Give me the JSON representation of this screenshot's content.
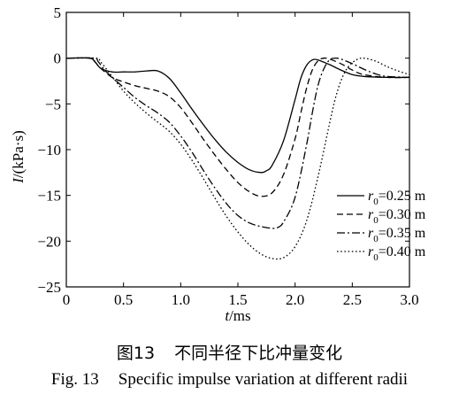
{
  "chart_data": {
    "type": "line",
    "xlabel_var": "t",
    "xlabel_unit": "/ms",
    "ylabel_var": "I",
    "ylabel_unit": "/(kPa·s)",
    "xlim": [
      0,
      3.0
    ],
    "ylim": [
      -25,
      5
    ],
    "x_ticks": [
      "0",
      "0.5",
      "1.0",
      "1.5",
      "2.0",
      "2.5",
      "3.0"
    ],
    "y_ticks": [
      "5",
      "0",
      "−5",
      "−10",
      "−15",
      "−20",
      "−25"
    ],
    "grid": false,
    "legend_position": "right",
    "series": [
      {
        "name": "r0=0.25 m",
        "label_var": "r",
        "label_sub": "0",
        "label_value": "=0.25 m",
        "dash": "solid",
        "points": [
          [
            0,
            0
          ],
          [
            0.2,
            0
          ],
          [
            0.25,
            -0.4
          ],
          [
            0.3,
            -1.1
          ],
          [
            0.4,
            -1.5
          ],
          [
            0.5,
            -1.5
          ],
          [
            0.6,
            -1.5
          ],
          [
            0.7,
            -1.4
          ],
          [
            0.8,
            -1.4
          ],
          [
            0.9,
            -2.2
          ],
          [
            1.0,
            -3.8
          ],
          [
            1.1,
            -5.6
          ],
          [
            1.2,
            -7.3
          ],
          [
            1.3,
            -8.9
          ],
          [
            1.4,
            -10.3
          ],
          [
            1.5,
            -11.4
          ],
          [
            1.6,
            -12.2
          ],
          [
            1.7,
            -12.5
          ],
          [
            1.75,
            -12.3
          ],
          [
            1.8,
            -11.7
          ],
          [
            1.9,
            -9.0
          ],
          [
            2.0,
            -4.5
          ],
          [
            2.05,
            -2.2
          ],
          [
            2.1,
            -0.8
          ],
          [
            2.15,
            -0.2
          ],
          [
            2.2,
            -0.2
          ],
          [
            2.3,
            -0.7
          ],
          [
            2.4,
            -1.3
          ],
          [
            2.5,
            -1.8
          ],
          [
            2.6,
            -2.0
          ],
          [
            2.8,
            -2.1
          ],
          [
            3.0,
            -2.1
          ]
        ]
      },
      {
        "name": "r0=0.30 m",
        "label_var": "r",
        "label_sub": "0",
        "label_value": "=0.30 m",
        "dash": "dashed",
        "points": [
          [
            0,
            0
          ],
          [
            0.22,
            0
          ],
          [
            0.25,
            -0.4
          ],
          [
            0.3,
            -1.1
          ],
          [
            0.4,
            -2.1
          ],
          [
            0.5,
            -2.6
          ],
          [
            0.6,
            -3.0
          ],
          [
            0.7,
            -3.3
          ],
          [
            0.8,
            -3.6
          ],
          [
            0.9,
            -4.2
          ],
          [
            1.0,
            -5.4
          ],
          [
            1.1,
            -7.1
          ],
          [
            1.2,
            -8.9
          ],
          [
            1.3,
            -10.6
          ],
          [
            1.4,
            -12.2
          ],
          [
            1.5,
            -13.6
          ],
          [
            1.6,
            -14.6
          ],
          [
            1.7,
            -15.1
          ],
          [
            1.8,
            -14.7
          ],
          [
            1.9,
            -12.7
          ],
          [
            2.0,
            -8.8
          ],
          [
            2.05,
            -6.0
          ],
          [
            2.1,
            -3.3
          ],
          [
            2.15,
            -1.3
          ],
          [
            2.2,
            -0.3
          ],
          [
            2.25,
            0
          ],
          [
            2.3,
            -0.1
          ],
          [
            2.4,
            -0.6
          ],
          [
            2.5,
            -1.3
          ],
          [
            2.6,
            -1.8
          ],
          [
            2.8,
            -2.1
          ],
          [
            3.0,
            -2.1
          ]
        ]
      },
      {
        "name": "r0=0.35 m",
        "label_var": "r",
        "label_sub": "0",
        "label_value": "=0.35 m",
        "dash": "dashdot",
        "points": [
          [
            0,
            0
          ],
          [
            0.24,
            0
          ],
          [
            0.28,
            -0.4
          ],
          [
            0.35,
            -1.5
          ],
          [
            0.5,
            -3.2
          ],
          [
            0.6,
            -4.3
          ],
          [
            0.7,
            -5.2
          ],
          [
            0.8,
            -6.0
          ],
          [
            0.9,
            -7.0
          ],
          [
            1.0,
            -8.5
          ],
          [
            1.1,
            -10.3
          ],
          [
            1.2,
            -12.3
          ],
          [
            1.3,
            -14.2
          ],
          [
            1.4,
            -15.9
          ],
          [
            1.5,
            -17.2
          ],
          [
            1.6,
            -18.0
          ],
          [
            1.7,
            -18.4
          ],
          [
            1.8,
            -18.6
          ],
          [
            1.85,
            -18.5
          ],
          [
            1.9,
            -17.9
          ],
          [
            2.0,
            -15.2
          ],
          [
            2.1,
            -9.5
          ],
          [
            2.15,
            -6.0
          ],
          [
            2.2,
            -3.0
          ],
          [
            2.25,
            -1.2
          ],
          [
            2.3,
            -0.2
          ],
          [
            2.35,
            0
          ],
          [
            2.4,
            -0.1
          ],
          [
            2.5,
            -0.6
          ],
          [
            2.6,
            -1.2
          ],
          [
            2.7,
            -1.7
          ],
          [
            2.8,
            -2.0
          ],
          [
            3.0,
            -2.1
          ]
        ]
      },
      {
        "name": "r0=0.40 m",
        "label_var": "r",
        "label_sub": "0",
        "label_value": "=0.40 m",
        "dash": "dotted",
        "points": [
          [
            0,
            0
          ],
          [
            0.26,
            0
          ],
          [
            0.3,
            -0.4
          ],
          [
            0.4,
            -2.0
          ],
          [
            0.5,
            -3.6
          ],
          [
            0.6,
            -4.9
          ],
          [
            0.7,
            -6.0
          ],
          [
            0.8,
            -7.0
          ],
          [
            0.9,
            -8.0
          ],
          [
            1.0,
            -9.4
          ],
          [
            1.1,
            -11.2
          ],
          [
            1.2,
            -13.2
          ],
          [
            1.3,
            -15.3
          ],
          [
            1.4,
            -17.3
          ],
          [
            1.5,
            -19.0
          ],
          [
            1.6,
            -20.4
          ],
          [
            1.7,
            -21.4
          ],
          [
            1.8,
            -21.9
          ],
          [
            1.9,
            -21.8
          ],
          [
            2.0,
            -20.6
          ],
          [
            2.1,
            -17.8
          ],
          [
            2.2,
            -13.0
          ],
          [
            2.3,
            -7.2
          ],
          [
            2.35,
            -4.5
          ],
          [
            2.4,
            -2.5
          ],
          [
            2.45,
            -1.2
          ],
          [
            2.5,
            -0.5
          ],
          [
            2.55,
            -0.1
          ],
          [
            2.6,
            0
          ],
          [
            2.7,
            -0.3
          ],
          [
            2.8,
            -0.9
          ],
          [
            2.9,
            -1.4
          ],
          [
            3.0,
            -1.8
          ]
        ]
      }
    ]
  },
  "caption": {
    "cn_label": "图13",
    "cn_text": "不同半径下比冲量变化",
    "en_label": "Fig. 13",
    "en_text": "Specific impulse variation at different radii"
  }
}
